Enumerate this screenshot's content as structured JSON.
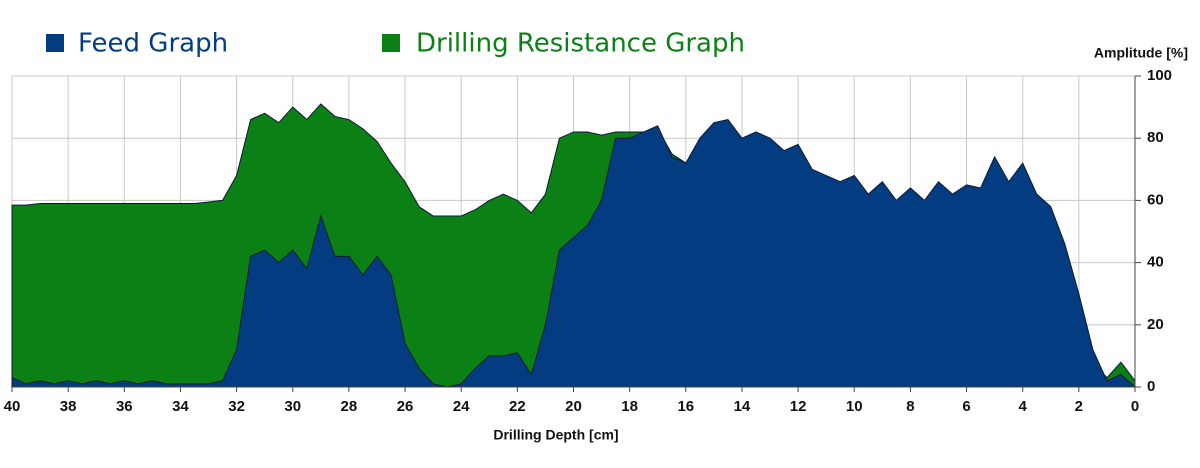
{
  "chart_data": {
    "type": "area",
    "xlabel": "Drilling Depth [cm]",
    "ylabel": "Amplitude [%]",
    "x": [
      40,
      39.5,
      39,
      38.5,
      38,
      37.5,
      37,
      36.5,
      36,
      35.5,
      35,
      34.5,
      34,
      33.5,
      33,
      32.5,
      32,
      31.5,
      31,
      30.5,
      30,
      29.5,
      29,
      28.5,
      28,
      27.5,
      27,
      26.5,
      26,
      25.5,
      25,
      24.5,
      24,
      23.5,
      23,
      22.5,
      22,
      21.5,
      21,
      20.5,
      20,
      19.5,
      19,
      18.5,
      18,
      17.5,
      17,
      16.5,
      16,
      15.5,
      15,
      14.5,
      14,
      13.5,
      13,
      12.5,
      12,
      11.5,
      11,
      10.5,
      10,
      9.5,
      9,
      8.5,
      8,
      7.5,
      7,
      6.5,
      6,
      5.5,
      5,
      4.5,
      4,
      3.5,
      3,
      2.5,
      2,
      1.5,
      1,
      0.5,
      0
    ],
    "series": [
      {
        "name": "Drilling Resistance Graph",
        "color": "#0b8014",
        "values": [
          58.5,
          58.5,
          59,
          59,
          59,
          59,
          59,
          59,
          59,
          59,
          59,
          59,
          59,
          59,
          59.5,
          60,
          68,
          86,
          88,
          85,
          90,
          86,
          91,
          87,
          86,
          83,
          79,
          72,
          66,
          58,
          55,
          55,
          55,
          57,
          60,
          62,
          60,
          56,
          62,
          80,
          82,
          82,
          81,
          82,
          82,
          82,
          83,
          75,
          72,
          76,
          76,
          76,
          73,
          74,
          72,
          68,
          64,
          60,
          58,
          56,
          58,
          54,
          54,
          52,
          52,
          50,
          50,
          50,
          50,
          50,
          50,
          50,
          50,
          48,
          45,
          36,
          25,
          8,
          3,
          8,
          2
        ]
      },
      {
        "name": "Feed Graph",
        "color": "#043c82",
        "values": [
          3,
          1,
          2,
          1,
          2,
          1,
          2,
          1,
          2,
          1,
          2,
          1,
          1,
          1,
          1,
          2,
          12,
          42,
          44,
          40,
          44,
          38,
          55,
          42,
          42,
          36,
          42,
          36,
          14,
          6,
          1,
          0,
          1,
          6,
          10,
          10,
          11,
          4,
          20,
          44,
          48,
          52,
          60,
          80,
          80,
          82,
          84,
          74,
          72,
          80,
          85,
          86,
          80,
          82,
          80,
          76,
          78,
          70,
          68,
          66,
          68,
          62,
          66,
          60,
          64,
          60,
          66,
          62,
          65,
          64,
          74,
          66,
          72,
          62,
          58,
          46,
          30,
          12,
          2,
          4,
          0
        ]
      }
    ],
    "xlim": [
      40,
      0
    ],
    "xticks": [
      40,
      38,
      36,
      34,
      32,
      30,
      28,
      26,
      24,
      22,
      20,
      18,
      16,
      14,
      12,
      10,
      8,
      6,
      4,
      2,
      0
    ],
    "ylim": [
      0,
      100
    ],
    "yticks": [
      0,
      20,
      40,
      60,
      80,
      100
    ],
    "grid": true
  }
}
